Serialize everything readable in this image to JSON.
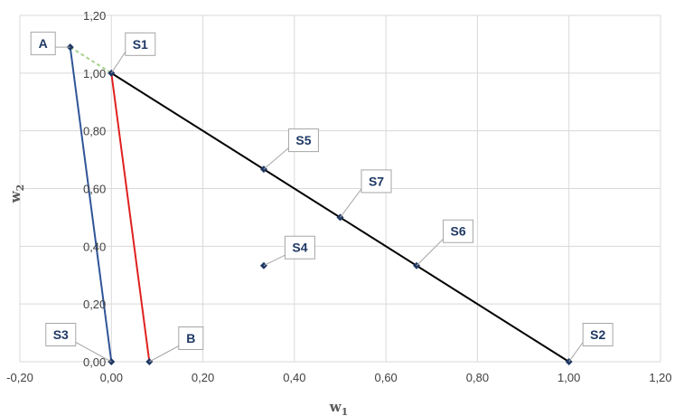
{
  "chart_data": {
    "type": "scatter",
    "title": "",
    "xlabel": "w",
    "xlabel_sub": "1",
    "ylabel": "w",
    "ylabel_sub": "2",
    "xlim": [
      -0.2,
      1.2
    ],
    "ylim": [
      0,
      1.2
    ],
    "x_ticks": [
      "-0,20",
      "0,00",
      "0,20",
      "0,40",
      "0,60",
      "0,80",
      "1,00",
      "1,20"
    ],
    "y_ticks": [
      "0,00",
      "0,20",
      "0,40",
      "0,60",
      "0,80",
      "1,00",
      "1,20"
    ],
    "grid": true,
    "points": [
      {
        "label": "A",
        "x": -0.09,
        "y": 1.09
      },
      {
        "label": "S1",
        "x": 0.0,
        "y": 1.0
      },
      {
        "label": "S5",
        "x": 0.333,
        "y": 0.667
      },
      {
        "label": "S7",
        "x": 0.5,
        "y": 0.5
      },
      {
        "label": "S6",
        "x": 0.667,
        "y": 0.333
      },
      {
        "label": "S4",
        "x": 0.333,
        "y": 0.333
      },
      {
        "label": "S3",
        "x": 0.0,
        "y": 0.0
      },
      {
        "label": "B",
        "x": 0.083,
        "y": 0.0
      },
      {
        "label": "S2",
        "x": 1.0,
        "y": 0.0
      }
    ],
    "lines": [
      {
        "from": "S1",
        "to": "S2",
        "color": "#000000",
        "style": "solid"
      },
      {
        "from": "A",
        "to": "S3",
        "color": "#2f5597",
        "style": "solid"
      },
      {
        "from": "S1",
        "to": "B",
        "color": "#e02020",
        "style": "solid"
      },
      {
        "from": "A",
        "to": "S1",
        "color": "#a9d18e",
        "style": "dashed"
      }
    ],
    "colors": {
      "marker": "#1f3864",
      "grid": "#d9d9d9",
      "callout_border": "#a6a6a6",
      "callout_text": "#1f3864"
    }
  }
}
